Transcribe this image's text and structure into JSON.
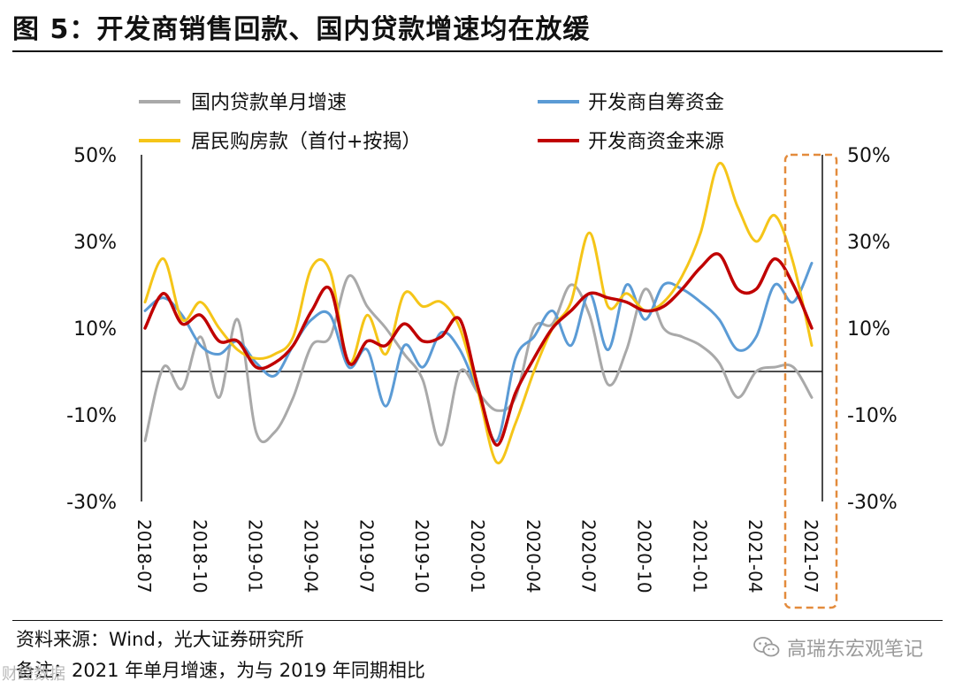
{
  "header": {
    "title": "图 5：开发商销售回款、国内贷款增速均在放缓"
  },
  "footer": {
    "source": "资料来源：Wind，光大证券研究所",
    "remark": "备注：2021 年单月增速，为与 2019 年同期相比",
    "watermark": "高瑞东宏观笔记",
    "watermark_icon": "wechat-icon",
    "watermark_left": "财经数据"
  },
  "colors": {
    "gray": "#a9a9a9",
    "blue": "#5b9bd5",
    "yellow": "#f5c518",
    "red": "#c00000",
    "highlight_box": "#e38b3c"
  },
  "chart_data": {
    "type": "line",
    "title": "",
    "xlabel": "",
    "ylabel": "",
    "ylim": [
      -30,
      50
    ],
    "yticks": [
      50,
      30,
      10,
      -10,
      -30
    ],
    "ytick_labels": [
      "50%",
      "30%",
      "10%",
      "-10%",
      "-30%"
    ],
    "y_right_ticks": [
      50,
      30,
      10,
      -10,
      -30
    ],
    "y_right_tick_labels": [
      "50%",
      "30%",
      "10%",
      "-10%",
      "-30%"
    ],
    "x_tick_labels": [
      "2018-07",
      "2018-10",
      "2019-01",
      "2019-04",
      "2019-07",
      "2019-10",
      "2020-01",
      "2020-04",
      "2020-07",
      "2020-10",
      "2021-01",
      "2021-04",
      "2021-07"
    ],
    "x_months": [
      "2018-07",
      "2018-08",
      "2018-09",
      "2018-10",
      "2018-11",
      "2018-12",
      "2019-01",
      "2019-02",
      "2019-03",
      "2019-04",
      "2019-05",
      "2019-06",
      "2019-07",
      "2019-08",
      "2019-09",
      "2019-10",
      "2019-11",
      "2019-12",
      "2020-01",
      "2020-02",
      "2020-03",
      "2020-04",
      "2020-05",
      "2020-06",
      "2020-07",
      "2020-08",
      "2020-09",
      "2020-10",
      "2020-11",
      "2020-12",
      "2021-01",
      "2021-02",
      "2021-03",
      "2021-04",
      "2021-05",
      "2021-06",
      "2021-07"
    ],
    "zero_line": 0,
    "highlight": "2021-07",
    "legend": [
      {
        "name": "国内贷款单月增速",
        "color": "#a9a9a9"
      },
      {
        "name": "开发商自筹资金",
        "color": "#5b9bd5"
      },
      {
        "name": "居民购房款（首付+按揭）",
        "color": "#f5c518"
      },
      {
        "name": "开发商资金来源",
        "color": "#c00000"
      }
    ],
    "series": [
      {
        "name": "国内贷款单月增速",
        "color": "#a9a9a9",
        "values": [
          -16,
          1,
          -4,
          8,
          -6,
          12,
          -14,
          -14,
          -6,
          6,
          8,
          22,
          15,
          10,
          4,
          -2,
          -17,
          0,
          -5,
          -9,
          -6,
          10,
          11,
          20,
          13,
          -3,
          5,
          19,
          10,
          8,
          6,
          2,
          -6,
          0,
          1,
          1,
          -6
        ]
      },
      {
        "name": "开发商自筹资金",
        "color": "#5b9bd5",
        "values": [
          14,
          17,
          13,
          6,
          4,
          7,
          2,
          -1,
          6,
          12,
          13,
          1,
          5,
          -8,
          6,
          1,
          9,
          5,
          -5,
          -16,
          3,
          8,
          14,
          6,
          18,
          5,
          20,
          12,
          20,
          19,
          16,
          12,
          5,
          8,
          20,
          16,
          25
        ]
      },
      {
        "name": "居民购房款（首付+按揭）",
        "color": "#f5c518",
        "values": [
          16,
          26,
          12,
          16,
          10,
          5,
          3,
          4,
          8,
          24,
          23,
          2,
          13,
          4,
          18,
          15,
          16,
          10,
          -5,
          -21,
          -12,
          0,
          10,
          16,
          32,
          15,
          18,
          14,
          16,
          22,
          32,
          48,
          38,
          30,
          36,
          25,
          6
        ]
      },
      {
        "name": "开发商资金来源",
        "color": "#c00000",
        "values": [
          10,
          18,
          11,
          13,
          7,
          7,
          1,
          2,
          6,
          14,
          19,
          2,
          7,
          6,
          11,
          7,
          8,
          12,
          -4,
          -17,
          -5,
          3,
          10,
          14,
          18,
          17,
          16,
          14,
          15,
          19,
          24,
          27,
          19,
          19,
          26,
          20,
          10
        ]
      }
    ]
  }
}
